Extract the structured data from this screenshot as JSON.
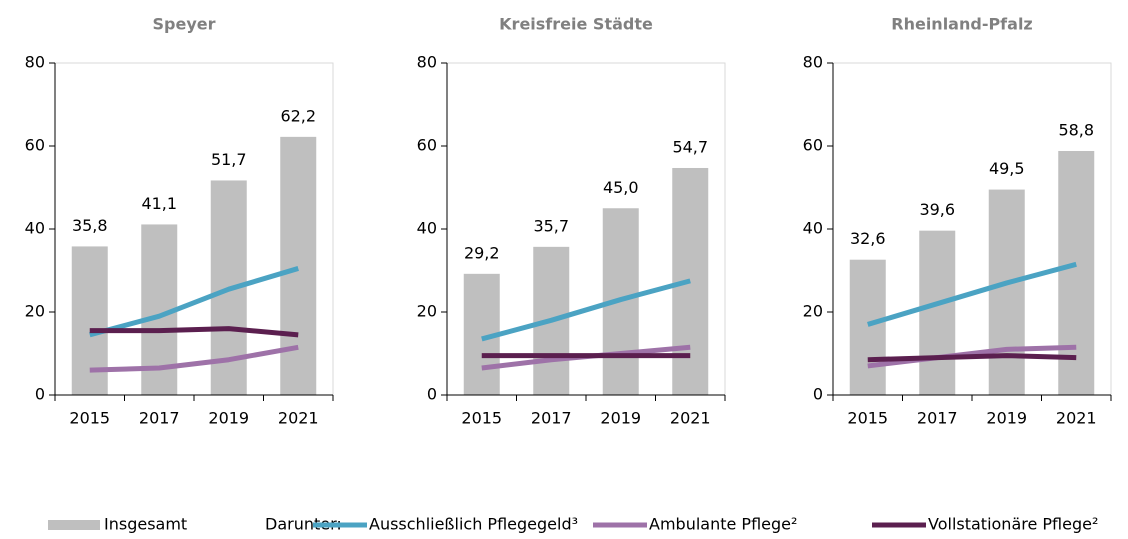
{
  "chart_data": [
    {
      "type": "bar",
      "title": "Speyer",
      "categories": [
        "2015",
        "2017",
        "2019",
        "2021"
      ],
      "values": [
        35.8,
        41.1,
        51.7,
        62.2
      ],
      "value_labels": [
        "35,8",
        "41,1",
        "51,7",
        "62,2"
      ],
      "name": "Insgesamt",
      "color": "#bfbfbf",
      "series": [
        {
          "name": "Ausschließlich Pflegegeld³",
          "color": "#4ba3c3",
          "values": [
            14.5,
            19,
            25.5,
            30.5
          ]
        },
        {
          "name": "Ambulante Pflege²",
          "color": "#9e72a8",
          "values": [
            6,
            6.5,
            8.5,
            11.5
          ]
        },
        {
          "name": "Vollstationäre Pflege²",
          "color": "#5b1f4f",
          "values": [
            15.5,
            15.5,
            16,
            14.5
          ]
        }
      ],
      "ylim": [
        0,
        80
      ],
      "yticks": [
        0,
        20,
        40,
        60,
        80
      ]
    },
    {
      "type": "bar",
      "title": "Kreisfreie Städte",
      "categories": [
        "2015",
        "2017",
        "2019",
        "2021"
      ],
      "values": [
        29.2,
        35.7,
        45.0,
        54.7
      ],
      "value_labels": [
        "29,2",
        "35,7",
        "45,0",
        "54,7"
      ],
      "name": "Insgesamt",
      "color": "#bfbfbf",
      "series": [
        {
          "name": "Ausschließlich Pflegegeld³",
          "color": "#4ba3c3",
          "values": [
            13.5,
            18,
            23,
            27.5
          ]
        },
        {
          "name": "Ambulante Pflege²",
          "color": "#9e72a8",
          "values": [
            6.5,
            8.5,
            10,
            11.5
          ]
        },
        {
          "name": "Vollstationäre Pflege²",
          "color": "#5b1f4f",
          "values": [
            9.5,
            9.5,
            9.5,
            9.5
          ]
        }
      ],
      "ylim": [
        0,
        80
      ],
      "yticks": [
        0,
        20,
        40,
        60,
        80
      ]
    },
    {
      "type": "bar",
      "title": "Rheinland-Pfalz",
      "categories": [
        "2015",
        "2017",
        "2019",
        "2021"
      ],
      "values": [
        32.6,
        39.6,
        49.5,
        58.8
      ],
      "value_labels": [
        "32,6",
        "39,6",
        "49,5",
        "58,8"
      ],
      "name": "Insgesamt",
      "color": "#bfbfbf",
      "series": [
        {
          "name": "Ausschließlich Pflegegeld³",
          "color": "#4ba3c3",
          "values": [
            17,
            22,
            27,
            31.5
          ]
        },
        {
          "name": "Ambulante Pflege²",
          "color": "#9e72a8",
          "values": [
            7,
            9,
            11,
            11.5
          ]
        },
        {
          "name": "Vollstationäre Pflege²",
          "color": "#5b1f4f",
          "values": [
            8.5,
            9,
            9.5,
            9
          ]
        }
      ],
      "ylim": [
        0,
        80
      ],
      "yticks": [
        0,
        20,
        40,
        60,
        80
      ]
    }
  ],
  "legend": {
    "prefix": "Darunter:"
  }
}
